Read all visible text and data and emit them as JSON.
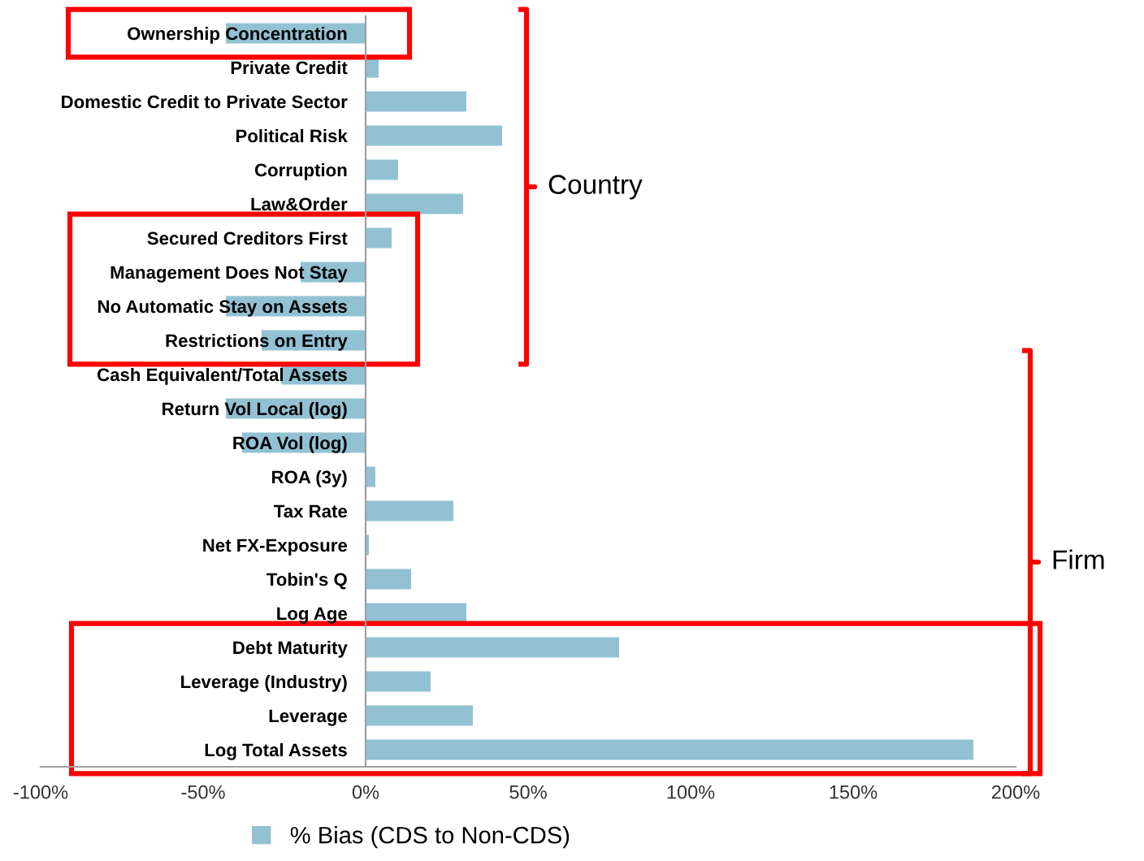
{
  "chart_data": {
    "type": "bar",
    "orientation": "horizontal",
    "categories": [
      "Ownership Concentration",
      "Private Credit",
      "Domestic Credit to Private Sector",
      "Political Risk",
      "Corruption",
      "Law&Order",
      "Secured Creditors First",
      "Management Does Not Stay",
      "No Automatic Stay on Assets",
      "Restrictions on Entry",
      "Cash Equivalent/Total Assets",
      "Return Vol Local (log)",
      "ROA Vol (log)",
      "ROA (3y)",
      "Tax Rate",
      "Net FX-Exposure",
      "Tobin's Q",
      "Log Age",
      "Debt Maturity",
      "Leverage (Industry)",
      "Leverage",
      "Log Total Assets"
    ],
    "series": [
      {
        "name": "% Bias (CDS to Non-CDS)",
        "color": "#92c1d3",
        "values": [
          -43,
          4,
          31,
          42,
          10,
          30,
          8,
          -20,
          -43,
          -32,
          -26,
          -43,
          -38,
          3,
          27,
          1,
          14,
          31,
          78,
          20,
          33,
          187
        ]
      }
    ],
    "xlim": [
      -100,
      200
    ],
    "xticks": [
      {
        "value": -100,
        "label": "-100%"
      },
      {
        "value": -50,
        "label": "-50%"
      },
      {
        "value": 0,
        "label": "0%"
      },
      {
        "value": 50,
        "label": "50%"
      },
      {
        "value": 100,
        "label": "100%"
      },
      {
        "value": 150,
        "label": "150%"
      },
      {
        "value": 200,
        "label": "200%"
      }
    ],
    "annotations": [
      "Country",
      "Firm"
    ],
    "grid": false,
    "legend": "bottom"
  }
}
